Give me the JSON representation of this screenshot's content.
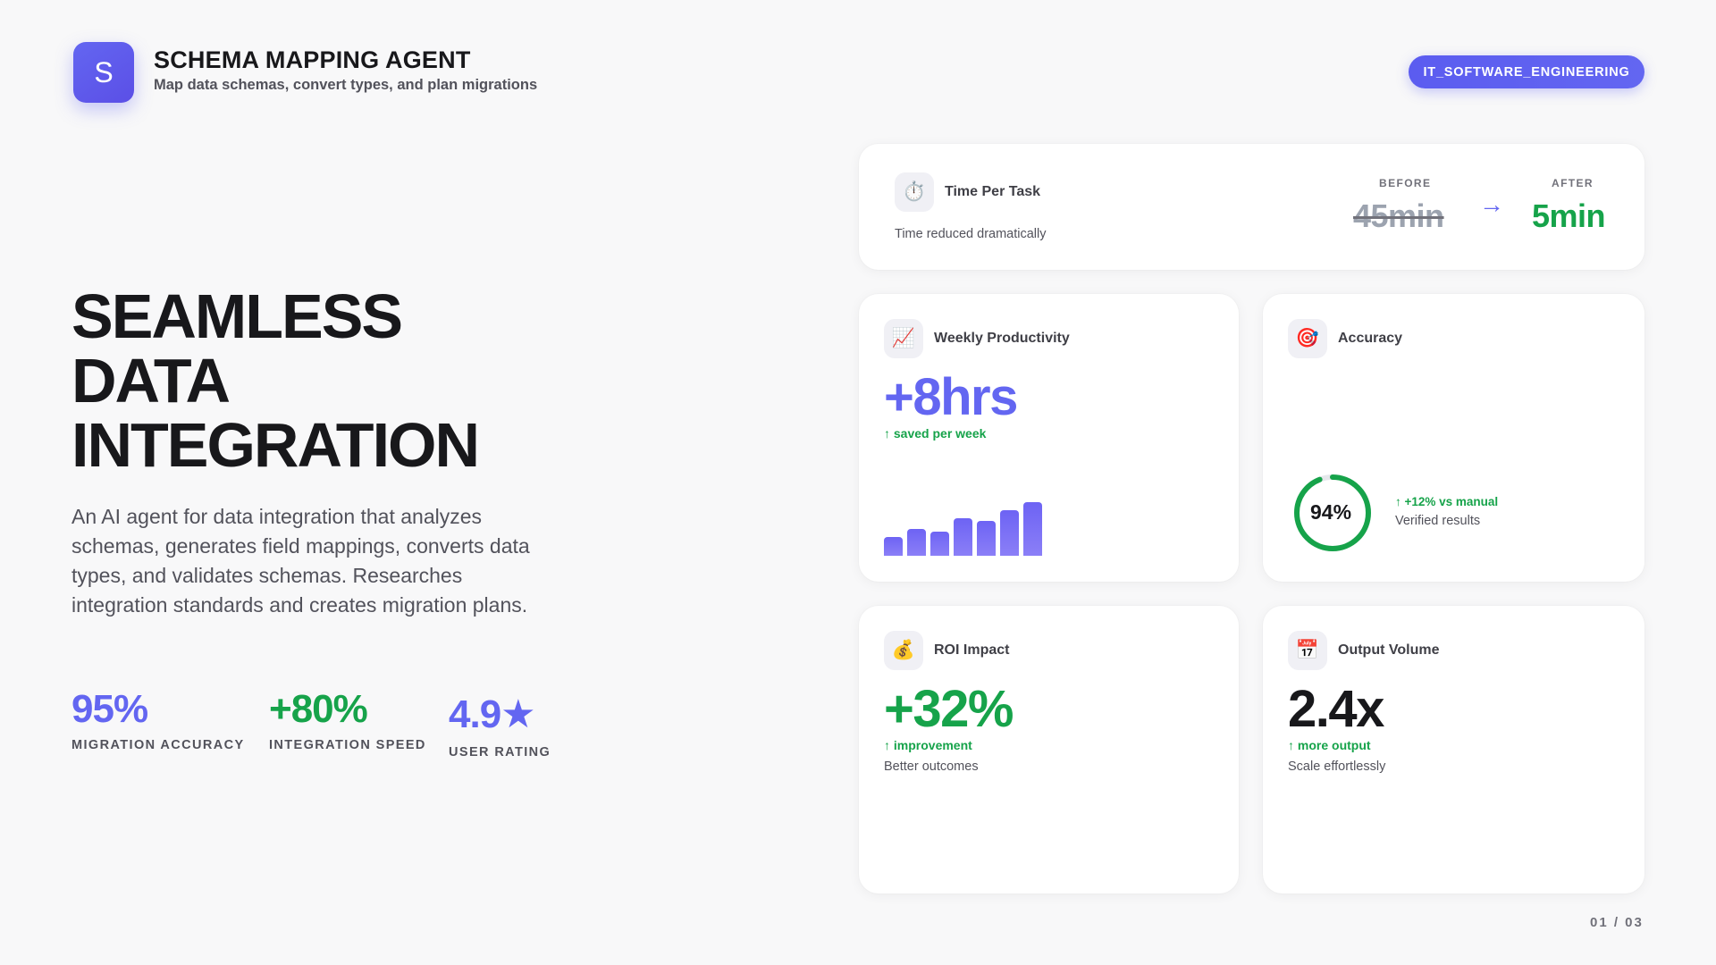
{
  "header": {
    "logo_letter": "S",
    "title": "SCHEMA MAPPING AGENT",
    "subtitle": "Map data schemas, convert types, and plan migrations",
    "category": "IT_SOFTWARE_ENGINEERING"
  },
  "hero": {
    "title_lines": [
      "SEAMLESS",
      "DATA",
      "INTEGRATION"
    ],
    "description": "An AI agent for data integration that analyzes schemas, generates field mappings, converts data types, and validates schemas. Researches integration standards and creates migration plans.",
    "stats": [
      {
        "value": "95%",
        "label": "MIGRATION ACCURACY",
        "color": "#6366f1"
      },
      {
        "value": "+80%",
        "label": "INTEGRATION SPEED",
        "color": "#16a34a"
      },
      {
        "value": "4.9★",
        "label": "USER RATING",
        "color": "#6366f1"
      }
    ]
  },
  "cards": {
    "time_per_task": {
      "icon": "stopwatch-icon",
      "icon_glyph": "⏱️",
      "title": "Time Per Task",
      "caption": "Time reduced dramatically",
      "before_label": "BEFORE",
      "before_value": "45min",
      "after_label": "AFTER",
      "after_value": "5min",
      "arrow": "→"
    },
    "weekly_productivity": {
      "icon": "chart-increasing-icon",
      "icon_glyph": "📈",
      "title": "Weekly Productivity",
      "value": "+8hrs",
      "trend": "↑ saved per week",
      "bar_levels": [
        0.35,
        0.5,
        0.45,
        0.7,
        0.65,
        0.85,
        1.0
      ]
    },
    "accuracy": {
      "icon": "target-icon",
      "icon_glyph": "🎯",
      "title": "Accuracy",
      "ring_value": "94%",
      "ring_fraction": 0.94,
      "trend": "↑ +12% vs manual",
      "caption": "Verified results"
    },
    "roi_impact": {
      "icon": "money-bag-icon",
      "icon_glyph": "💰",
      "title": "ROI Impact",
      "value": "+32%",
      "trend": "↑ improvement",
      "caption": "Better outcomes"
    },
    "output_volume": {
      "icon": "calendar-icon",
      "icon_glyph": "📅",
      "title": "Output Volume",
      "value": "2.4x",
      "trend": "↑ more output",
      "caption": "Scale effortlessly"
    }
  },
  "colors": {
    "accent": "#6366f1",
    "success": "#16a34a",
    "text": "#18181b",
    "muted": "#52525b"
  },
  "page_indicator": "01 / 03"
}
